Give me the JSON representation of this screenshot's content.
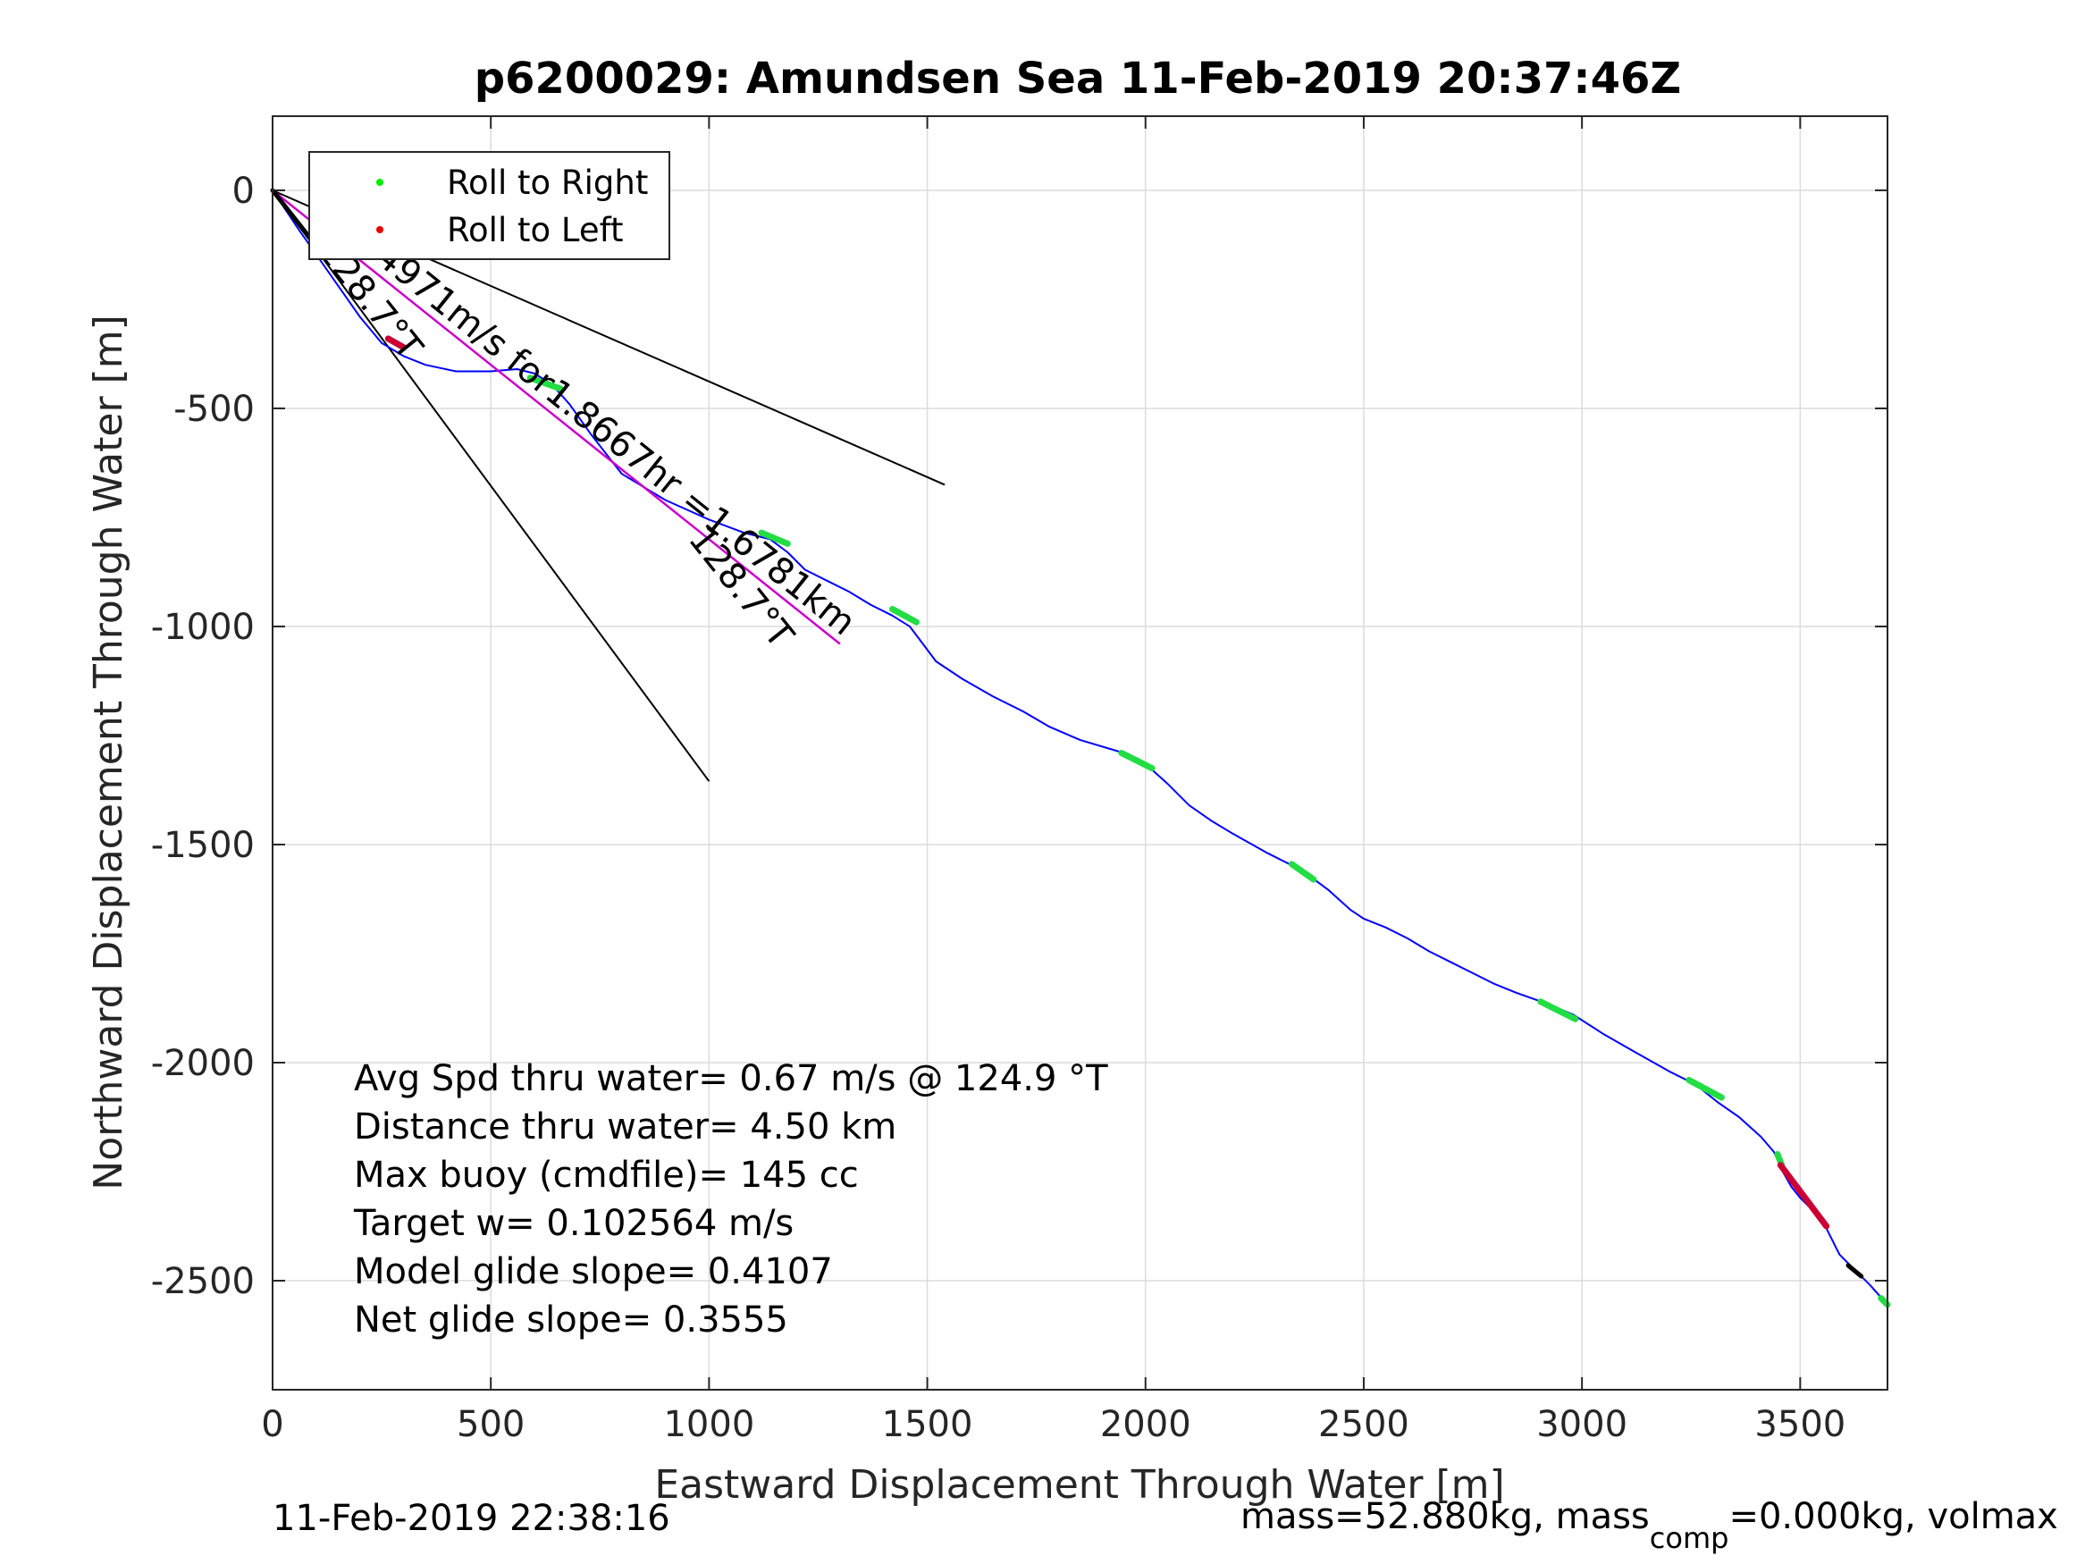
{
  "chart_data": {
    "type": "line",
    "title": "p6200029: Amundsen Sea 11-Feb-2019 20:37:46Z",
    "xlabel": "Eastward Displacement Through Water [m]",
    "ylabel": "Northward Displacement Through Water [m]",
    "xlim": [
      0,
      3700
    ],
    "ylim": [
      -2750,
      170
    ],
    "x_ticks": [
      0,
      500,
      1000,
      1500,
      2000,
      2500,
      3000,
      3500
    ],
    "y_ticks": [
      0,
      -500,
      -1000,
      -1500,
      -2000,
      -2500
    ],
    "x_tick_labels": [
      "0",
      "500",
      "1000",
      "1500",
      "2000",
      "2500",
      "3000",
      "3500"
    ],
    "y_tick_labels": [
      "0",
      "-500",
      "-1000",
      "-1500",
      "-2000",
      "-2500"
    ],
    "grid": true,
    "legend_position": "top-left",
    "legend": [
      {
        "label": "Roll to Right",
        "color": "#00ee00"
      },
      {
        "label": "Roll to Left",
        "color": "#ee0000"
      }
    ],
    "series": [
      {
        "color": "#0000ff",
        "x": [
          0,
          60,
          130,
          200,
          250,
          300,
          350,
          420,
          500,
          560,
          600,
          640,
          680,
          730,
          800,
          900,
          1000,
          1080,
          1140,
          1180,
          1220,
          1270,
          1320,
          1370,
          1420,
          1460,
          1490,
          1520,
          1580,
          1650,
          1720,
          1780,
          1850,
          1950,
          2000,
          2050,
          2100,
          2150,
          2200,
          2280,
          2340,
          2380,
          2420,
          2470,
          2500,
          2550,
          2600,
          2650,
          2700,
          2750,
          2800,
          2850,
          2920,
          2980,
          3050,
          3120,
          3200,
          3260,
          3310,
          3360,
          3410,
          3440,
          3460,
          3480,
          3500,
          3520,
          3540,
          3555,
          3570,
          3590,
          3610,
          3630,
          3660,
          3700
        ],
        "y": [
          0,
          -90,
          -190,
          -290,
          -350,
          -380,
          -400,
          -415,
          -415,
          -410,
          -420,
          -445,
          -490,
          -560,
          -650,
          -710,
          -755,
          -785,
          -800,
          -830,
          -870,
          -895,
          -920,
          -950,
          -975,
          -1000,
          -1040,
          -1080,
          -1120,
          -1160,
          -1195,
          -1230,
          -1260,
          -1290,
          -1315,
          -1360,
          -1410,
          -1445,
          -1475,
          -1520,
          -1550,
          -1575,
          -1605,
          -1650,
          -1670,
          -1690,
          -1715,
          -1745,
          -1770,
          -1795,
          -1820,
          -1840,
          -1865,
          -1890,
          -1935,
          -1975,
          -2020,
          -2050,
          -2090,
          -2125,
          -2170,
          -2205,
          -2250,
          -2285,
          -2310,
          -2330,
          -2350,
          -2370,
          -2400,
          -2440,
          -2460,
          -2480,
          -2510,
          -2555
        ]
      },
      {
        "color": "#cc00cc",
        "x": [
          0,
          1300
        ],
        "y": [
          0,
          -1040
        ]
      }
    ],
    "heading_lines": [
      {
        "color": "#000000",
        "x": [
          0,
          1540
        ],
        "y": [
          0,
          -675
        ]
      },
      {
        "color": "#000000",
        "x": [
          0,
          1000
        ],
        "y": [
          0,
          -1355
        ]
      }
    ],
    "roll_right_segments": [
      {
        "x": [
          590,
          660
        ],
        "y": [
          -430,
          -455
        ]
      },
      {
        "x": [
          1120,
          1180
        ],
        "y": [
          -785,
          -810
        ]
      },
      {
        "x": [
          1420,
          1475
        ],
        "y": [
          -960,
          -990
        ]
      },
      {
        "x": [
          1945,
          2015
        ],
        "y": [
          -1290,
          -1325
        ]
      },
      {
        "x": [
          2335,
          2385
        ],
        "y": [
          -1545,
          -1580
        ]
      },
      {
        "x": [
          2905,
          2985
        ],
        "y": [
          -1860,
          -1900
        ]
      },
      {
        "x": [
          3245,
          3320
        ],
        "y": [
          -2040,
          -2080
        ]
      },
      {
        "x": [
          3448,
          3458
        ],
        "y": [
          -2210,
          -2235
        ]
      },
      {
        "x": [
          3685,
          3700
        ],
        "y": [
          -2540,
          -2555
        ]
      }
    ],
    "roll_left_segments": [
      {
        "x": [
          265,
          300
        ],
        "y": [
          -340,
          -360
        ]
      },
      {
        "x": [
          3455,
          3560
        ],
        "y": [
          -2235,
          -2375
        ]
      }
    ],
    "black_segments": [
      {
        "x": [
          0,
          110
        ],
        "y": [
          0,
          -140
        ]
      },
      {
        "x": [
          3610,
          3640
        ],
        "y": [
          -2465,
          -2490
        ]
      }
    ],
    "annotations": [
      {
        "text": "0.24971m/s for1.8667hr =1.6781km",
        "x": 130,
        "y": -80,
        "rotate": 38.7
      },
      {
        "text": "128.7°T",
        "x": 100,
        "y": -140,
        "rotate": 51.3
      },
      {
        "text": "128.7°T",
        "x": 950,
        "y": -800,
        "rotate": 51.3
      }
    ],
    "stats": [
      "Avg Spd thru water=  0.67 m/s @ 124.9 °T",
      "Distance thru water=  4.50 km",
      "Max buoy (cmdfile)= 145 cc",
      "Target w= 0.102564 m/s",
      "Model glide slope= 0.4107",
      "Net glide slope= 0.3555"
    ]
  },
  "footer": {
    "left": "11-Feb-2019 22:38:16",
    "right_prefix": "mass=52.880kg, mass",
    "right_subscript": "comp",
    "right_suffix": "=0.000kg, volmax"
  }
}
